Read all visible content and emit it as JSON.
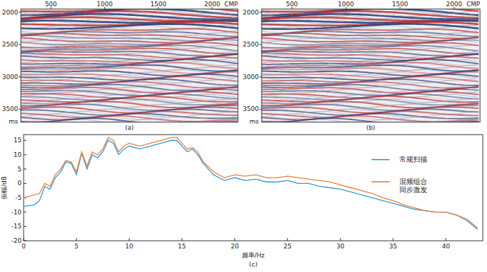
{
  "chart_data": [
    {
      "type": "image",
      "label": "(a)",
      "xlabel": "CMP",
      "ylabel": "ms",
      "xlim": [
        220,
        2240
      ],
      "xticks": [
        500,
        1000,
        1500,
        2000
      ],
      "ylim": [
        1950,
        3700
      ],
      "yticks": [
        2000,
        2500,
        3000,
        3500
      ]
    },
    {
      "type": "image",
      "label": "(b)",
      "xlabel": "CMP",
      "ylabel": "ms",
      "xlim": [
        220,
        2240
      ],
      "xticks": [
        500,
        1000,
        1500,
        2000
      ],
      "ylim": [
        1950,
        3700
      ],
      "yticks": [
        2000,
        2500,
        3000,
        3500
      ]
    },
    {
      "type": "line",
      "label": "(c)",
      "xlabel": "频率/Hz",
      "ylabel": "振幅/dB",
      "xlim": [
        0,
        43.5
      ],
      "xticks": [
        0,
        5,
        10,
        15,
        20,
        25,
        30,
        35,
        40
      ],
      "ylim": [
        -20,
        17
      ],
      "yticks": [
        -20,
        -15,
        -10,
        -5,
        0,
        5,
        10,
        15
      ],
      "grid": false,
      "legend": "upper right",
      "x": [
        0,
        1,
        1.5,
        2,
        2.5,
        3,
        3.5,
        4,
        4.5,
        5,
        5.5,
        6,
        6.5,
        7,
        7.5,
        8,
        8.5,
        9,
        9.5,
        10,
        11,
        12,
        13,
        14,
        14.5,
        15,
        15.5,
        16,
        16.5,
        17,
        18,
        19,
        20,
        21,
        22,
        23,
        24,
        25,
        26,
        27,
        28,
        29,
        30,
        31,
        32,
        33,
        34,
        35,
        36,
        37,
        38,
        39,
        40,
        41,
        42,
        43
      ],
      "series": [
        {
          "name": "常规扫描",
          "color": "#2e9bd6",
          "values": [
            -8,
            -7.5,
            -6,
            -1,
            -2,
            2,
            4,
            7.5,
            7,
            3,
            10.5,
            5,
            10,
            9,
            11,
            15,
            14,
            10,
            12,
            13,
            12,
            13,
            14,
            15,
            15,
            13,
            11,
            12,
            10,
            7,
            3,
            1,
            2,
            1,
            1.5,
            0.5,
            0.5,
            1,
            0,
            0,
            -1,
            -1.5,
            -2,
            -3,
            -4,
            -5,
            -6,
            -7,
            -8,
            -9,
            -9.5,
            -10,
            -10,
            -11,
            -13,
            -16
          ]
        },
        {
          "name": "混频组合同步激发",
          "color": "#f07a35",
          "values": [
            -5,
            -4,
            -3.5,
            0,
            -1,
            3,
            5,
            8,
            7.5,
            4,
            11,
            6,
            11,
            10,
            12,
            16,
            15,
            11,
            13,
            14,
            13,
            14,
            15,
            16,
            16,
            14,
            12,
            12.5,
            11,
            7.5,
            4,
            2,
            3,
            2.5,
            3,
            2,
            2,
            2.5,
            2,
            1.5,
            1,
            0.5,
            -0.5,
            -1.5,
            -2.5,
            -3.5,
            -5,
            -6,
            -7.5,
            -8.5,
            -9.5,
            -10,
            -10,
            -11,
            -12.5,
            -15.5
          ]
        }
      ]
    }
  ]
}
